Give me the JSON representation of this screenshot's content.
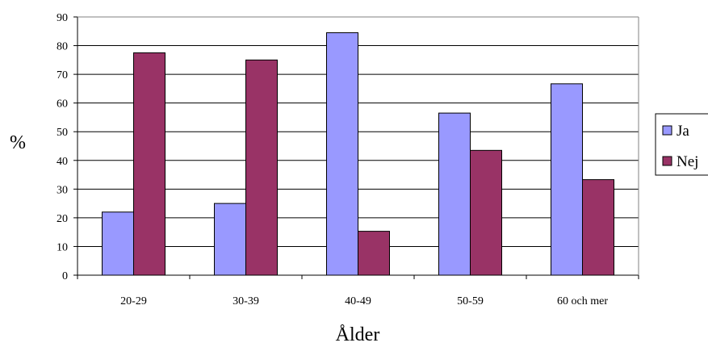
{
  "chart_data": {
    "type": "bar",
    "categories": [
      "20-29",
      "30-39",
      "40-49",
      "50-59",
      "60 och mer"
    ],
    "series": [
      {
        "name": "Ja",
        "values": [
          22,
          25,
          84.5,
          56.5,
          66.7
        ],
        "color": "#9999ff"
      },
      {
        "name": "Nej",
        "values": [
          77.5,
          75,
          15.3,
          43.5,
          33.3
        ],
        "color": "#993366"
      }
    ],
    "yticks": [
      0,
      10,
      20,
      30,
      40,
      50,
      60,
      70,
      80,
      90
    ],
    "ylim": [
      0,
      90
    ],
    "xlabel": "Ålder",
    "ylabel": "%",
    "grid": true,
    "legend": "right"
  }
}
